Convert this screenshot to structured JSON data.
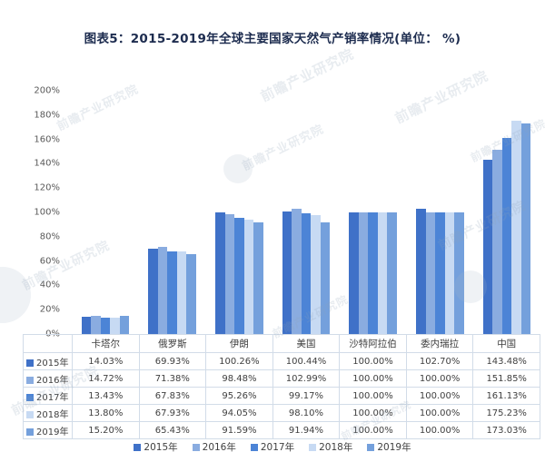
{
  "title": "图表5：2015-2019年全球主要国家天然气产销率情况(单位： %)",
  "watermark": "前瞻产业研究院",
  "chart_data": {
    "type": "bar",
    "title": "图表5：2015-2019年全球主要国家天然气产销率情况(单位： %)",
    "categories": [
      "卡塔尔",
      "俄罗斯",
      "伊朗",
      "美国",
      "沙特阿拉伯",
      "委内瑞拉",
      "中国"
    ],
    "series": [
      {
        "name": "2015年",
        "color": "#3F71C8",
        "values": [
          14.03,
          69.93,
          100.26,
          100.44,
          100.0,
          102.7,
          143.48
        ]
      },
      {
        "name": "2016年",
        "color": "#8AACE0",
        "values": [
          14.72,
          71.38,
          98.48,
          102.99,
          100.0,
          100.0,
          151.85
        ]
      },
      {
        "name": "2017年",
        "color": "#4C84D6",
        "values": [
          13.43,
          67.83,
          95.26,
          99.17,
          100.0,
          100.0,
          161.13
        ]
      },
      {
        "name": "2018年",
        "color": "#C7DAF3",
        "values": [
          13.8,
          67.93,
          94.05,
          98.1,
          100.0,
          100.0,
          175.23
        ]
      },
      {
        "name": "2019年",
        "color": "#74A0DC",
        "values": [
          15.2,
          65.43,
          91.59,
          91.94,
          100.0,
          100.0,
          173.03
        ]
      }
    ],
    "xlabel": "",
    "ylabel": "",
    "ylim": [
      0,
      200
    ],
    "ytick_step": 20,
    "ytick_suffix": "%",
    "value_suffix": "%",
    "grid": false,
    "legend_position": "bottom",
    "data_table_shown": true
  }
}
